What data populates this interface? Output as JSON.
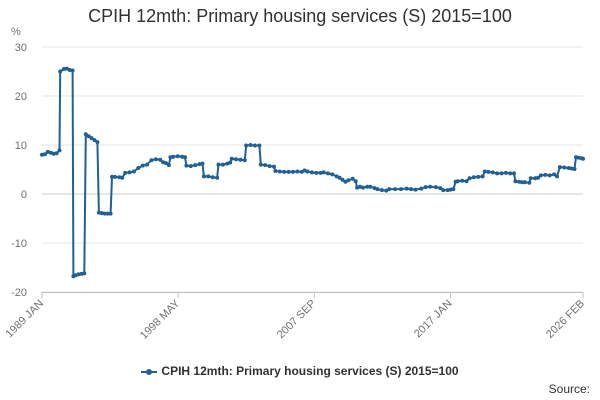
{
  "chart_data": {
    "type": "line",
    "title": "CPIH 12mth: Primary housing services (S) 2015=100",
    "ylabel": "%",
    "xlabel": "",
    "ylim": [
      -20,
      30
    ],
    "yticks": [
      30,
      20,
      10,
      0,
      -10,
      -20
    ],
    "x_range": [
      1989.0,
      2026.083
    ],
    "x_ticks": [
      {
        "label": "1989 JAN",
        "value": 1989.0
      },
      {
        "label": "1998 MAY",
        "value": 1998.333
      },
      {
        "label": "2007 SEP",
        "value": 2007.667
      },
      {
        "label": "2017 JAN",
        "value": 2017.0
      },
      {
        "label": "2026 FEB",
        "value": 2026.083
      }
    ],
    "grid": true,
    "legend_position": "bottom",
    "color": "#206095",
    "series": [
      {
        "name": "CPIH 12mth: Primary housing services (S) 2015=100",
        "points": [
          [
            1989.0,
            8.0
          ],
          [
            1989.2,
            8.1
          ],
          [
            1989.4,
            8.6
          ],
          [
            1989.6,
            8.4
          ],
          [
            1989.8,
            8.2
          ],
          [
            1990.0,
            8.3
          ],
          [
            1990.2,
            8.9
          ],
          [
            1990.25,
            25.0
          ],
          [
            1990.5,
            25.5
          ],
          [
            1990.7,
            25.6
          ],
          [
            1990.9,
            25.3
          ],
          [
            1991.1,
            25.2
          ],
          [
            1991.15,
            -16.8
          ],
          [
            1991.3,
            -16.6
          ],
          [
            1991.5,
            -16.4
          ],
          [
            1991.7,
            -16.3
          ],
          [
            1991.9,
            -16.2
          ],
          [
            1992.0,
            12.2
          ],
          [
            1992.2,
            11.8
          ],
          [
            1992.4,
            11.4
          ],
          [
            1992.6,
            11.0
          ],
          [
            1992.8,
            10.6
          ],
          [
            1992.9,
            -3.8
          ],
          [
            1993.1,
            -3.9
          ],
          [
            1993.3,
            -4.0
          ],
          [
            1993.5,
            -4.0
          ],
          [
            1993.7,
            -4.0
          ],
          [
            1993.8,
            3.5
          ],
          [
            1994.0,
            3.5
          ],
          [
            1994.3,
            3.4
          ],
          [
            1994.5,
            3.3
          ],
          [
            1994.7,
            4.3
          ],
          [
            1995.0,
            4.4
          ],
          [
            1995.3,
            4.6
          ],
          [
            1995.6,
            5.3
          ],
          [
            1995.9,
            5.8
          ],
          [
            1996.2,
            6.0
          ],
          [
            1996.5,
            6.9
          ],
          [
            1996.8,
            7.1
          ],
          [
            1997.1,
            7.0
          ],
          [
            1997.3,
            6.5
          ],
          [
            1997.5,
            6.3
          ],
          [
            1997.7,
            5.9
          ],
          [
            1997.8,
            7.5
          ],
          [
            1998.0,
            7.6
          ],
          [
            1998.3,
            7.7
          ],
          [
            1998.6,
            7.6
          ],
          [
            1998.8,
            7.5
          ],
          [
            1998.9,
            5.8
          ],
          [
            1999.2,
            5.7
          ],
          [
            1999.5,
            5.9
          ],
          [
            1999.8,
            6.1
          ],
          [
            2000.0,
            6.2
          ],
          [
            2000.1,
            3.6
          ],
          [
            2000.4,
            3.6
          ],
          [
            2000.7,
            3.4
          ],
          [
            2001.0,
            3.3
          ],
          [
            2001.1,
            6.0
          ],
          [
            2001.4,
            6.0
          ],
          [
            2001.7,
            6.2
          ],
          [
            2001.9,
            6.4
          ],
          [
            2002.0,
            7.2
          ],
          [
            2002.3,
            7.1
          ],
          [
            2002.6,
            7.0
          ],
          [
            2002.9,
            6.9
          ],
          [
            2003.0,
            9.9
          ],
          [
            2003.3,
            10.0
          ],
          [
            2003.6,
            9.9
          ],
          [
            2003.9,
            9.9
          ],
          [
            2004.0,
            6.0
          ],
          [
            2004.3,
            5.9
          ],
          [
            2004.6,
            5.7
          ],
          [
            2004.9,
            5.6
          ],
          [
            2005.0,
            4.7
          ],
          [
            2005.3,
            4.6
          ],
          [
            2005.6,
            4.5
          ],
          [
            2005.9,
            4.5
          ],
          [
            2006.2,
            4.5
          ],
          [
            2006.5,
            4.6
          ],
          [
            2006.8,
            4.5
          ],
          [
            2007.0,
            4.8
          ],
          [
            2007.2,
            4.6
          ],
          [
            2007.5,
            4.4
          ],
          [
            2007.8,
            4.3
          ],
          [
            2008.1,
            4.3
          ],
          [
            2008.3,
            4.4
          ],
          [
            2008.6,
            4.2
          ],
          [
            2008.9,
            4.0
          ],
          [
            2009.2,
            3.6
          ],
          [
            2009.4,
            3.3
          ],
          [
            2009.6,
            2.9
          ],
          [
            2009.8,
            2.5
          ],
          [
            2010.0,
            2.8
          ],
          [
            2010.3,
            3.1
          ],
          [
            2010.5,
            2.6
          ],
          [
            2010.6,
            1.3
          ],
          [
            2010.8,
            1.5
          ],
          [
            2011.0,
            1.3
          ],
          [
            2011.3,
            1.5
          ],
          [
            2011.5,
            1.5
          ],
          [
            2011.8,
            1.2
          ],
          [
            2012.0,
            1.0
          ],
          [
            2012.3,
            0.8
          ],
          [
            2012.6,
            0.7
          ],
          [
            2012.8,
            1.0
          ],
          [
            2013.2,
            1.0
          ],
          [
            2013.6,
            1.0
          ],
          [
            2014.0,
            1.1
          ],
          [
            2014.3,
            1.0
          ],
          [
            2014.6,
            0.9
          ],
          [
            2015.0,
            1.1
          ],
          [
            2015.3,
            1.4
          ],
          [
            2015.6,
            1.5
          ],
          [
            2016.0,
            1.4
          ],
          [
            2016.3,
            1.2
          ],
          [
            2016.5,
            0.8
          ],
          [
            2016.8,
            0.8
          ],
          [
            2017.0,
            0.9
          ],
          [
            2017.2,
            1.0
          ],
          [
            2017.35,
            2.5
          ],
          [
            2017.5,
            2.6
          ],
          [
            2017.8,
            2.7
          ],
          [
            2018.1,
            2.6
          ],
          [
            2018.3,
            3.2
          ],
          [
            2018.6,
            3.4
          ],
          [
            2018.9,
            3.5
          ],
          [
            2019.2,
            3.6
          ],
          [
            2019.35,
            4.6
          ],
          [
            2019.6,
            4.5
          ],
          [
            2019.9,
            4.4
          ],
          [
            2020.2,
            4.2
          ],
          [
            2020.5,
            4.2
          ],
          [
            2020.8,
            4.3
          ],
          [
            2021.1,
            4.2
          ],
          [
            2021.35,
            4.2
          ],
          [
            2021.45,
            2.6
          ],
          [
            2021.7,
            2.5
          ],
          [
            2021.9,
            2.4
          ],
          [
            2022.1,
            2.4
          ],
          [
            2022.4,
            2.3
          ],
          [
            2022.5,
            3.2
          ],
          [
            2022.8,
            3.2
          ],
          [
            2023.0,
            3.3
          ],
          [
            2023.2,
            3.8
          ],
          [
            2023.5,
            3.9
          ],
          [
            2023.8,
            3.8
          ],
          [
            2024.1,
            4.0
          ],
          [
            2024.3,
            3.6
          ],
          [
            2024.5,
            5.5
          ],
          [
            2024.8,
            5.4
          ],
          [
            2025.1,
            5.3
          ],
          [
            2025.3,
            5.2
          ],
          [
            2025.5,
            5.1
          ],
          [
            2025.6,
            7.5
          ],
          [
            2025.8,
            7.4
          ],
          [
            2026.0,
            7.3
          ],
          [
            2026.083,
            7.2
          ]
        ]
      }
    ]
  },
  "legend": {
    "label": "CPIH 12mth: Primary housing services (S) 2015=100"
  },
  "footer": {
    "source_label": "Source:"
  }
}
